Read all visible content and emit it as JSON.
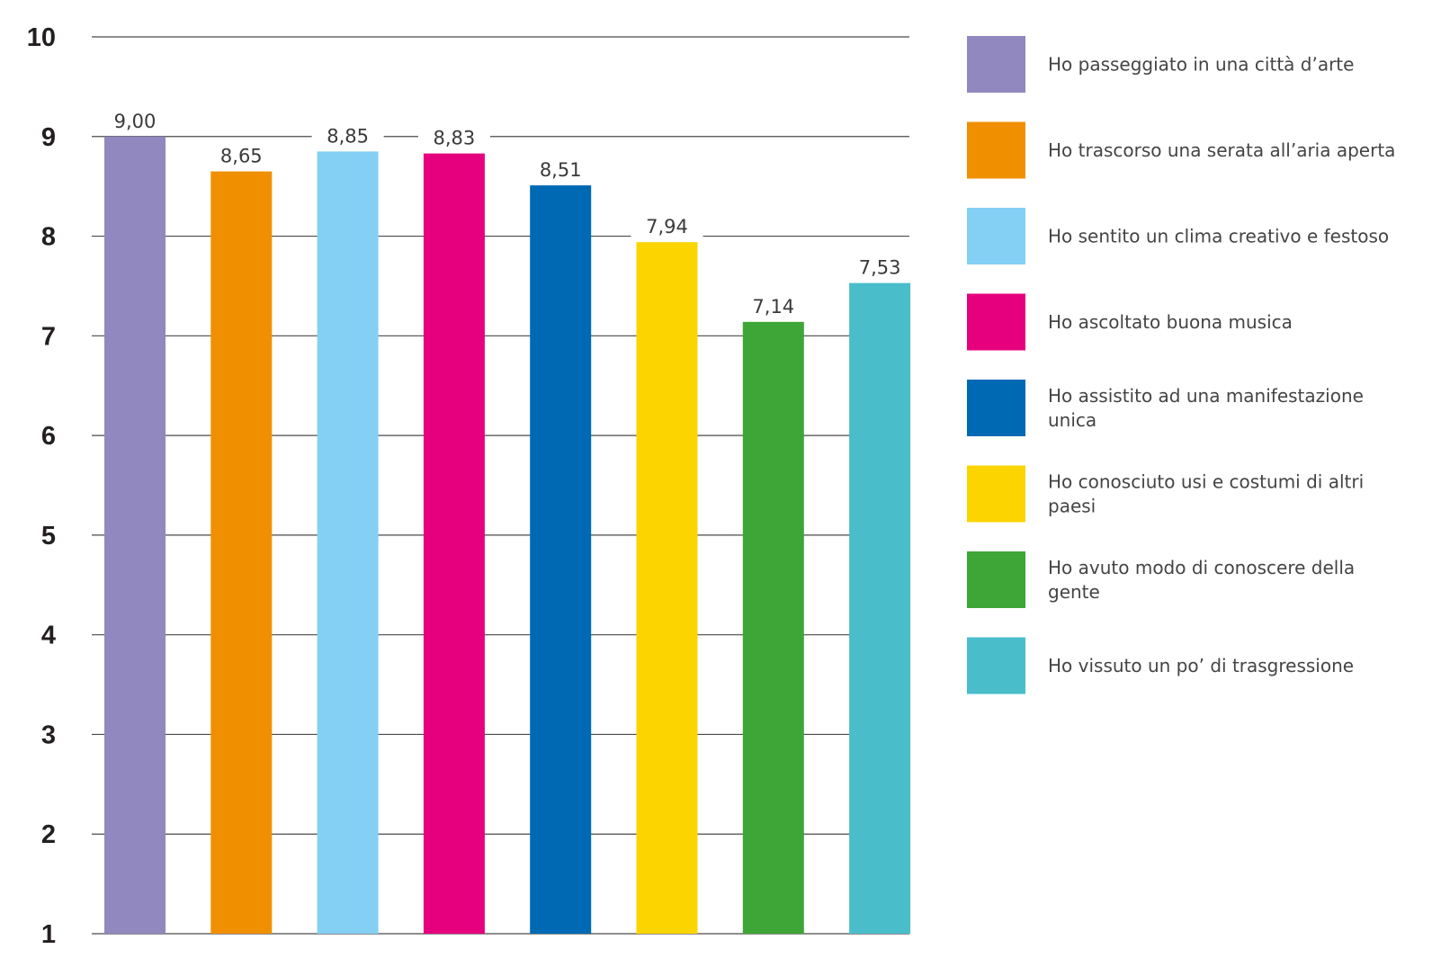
{
  "chart_data": {
    "type": "bar",
    "title": "",
    "xlabel": "",
    "ylabel": "",
    "ylim": [
      1,
      10
    ],
    "yticks": [
      "1",
      "2",
      "3",
      "4",
      "5",
      "6",
      "7",
      "8",
      "9",
      "10"
    ],
    "grid": "horizontal",
    "legend_position": "right",
    "categories": [
      "Ho passeggiato in una città d’arte",
      "Ho trascorso una serata all’aria aperta",
      "Ho sentito un clima creativo e festoso",
      "Ho ascoltato buona musica",
      "Ho assistito ad una manifestazione unica",
      "Ho conosciuto usi e costumi di altri paesi",
      "Ho avuto modo di conoscere della gente",
      "Ho vissuto un po’ di trasgressione"
    ],
    "values": [
      9.0,
      8.65,
      8.85,
      8.83,
      8.51,
      7.94,
      7.14,
      7.53
    ],
    "value_labels": [
      "9,00",
      "8,65",
      "8,85",
      "8,83",
      "8,51",
      "7,94",
      "7,14",
      "7,53"
    ],
    "legend_lines": [
      [
        "Ho passeggiato in una città d’arte"
      ],
      [
        "Ho trascorso una serata all’aria aperta"
      ],
      [
        "Ho sentito un clima creativo e festoso"
      ],
      [
        "Ho ascoltato buona musica"
      ],
      [
        "Ho assistito ad una manifestazione",
        "unica"
      ],
      [
        "Ho conosciuto usi e costumi di altri",
        "paesi"
      ],
      [
        "Ho avuto modo di conoscere della",
        "gente"
      ],
      [
        "Ho vissuto un po’ di trasgressione"
      ]
    ],
    "colors": [
      "#9088bf",
      "#f09000",
      "#84d0f4",
      "#e6007e",
      "#0069b4",
      "#fcd400",
      "#3ea636",
      "#4abdca"
    ],
    "gridline_color": "#4a4a4a"
  }
}
